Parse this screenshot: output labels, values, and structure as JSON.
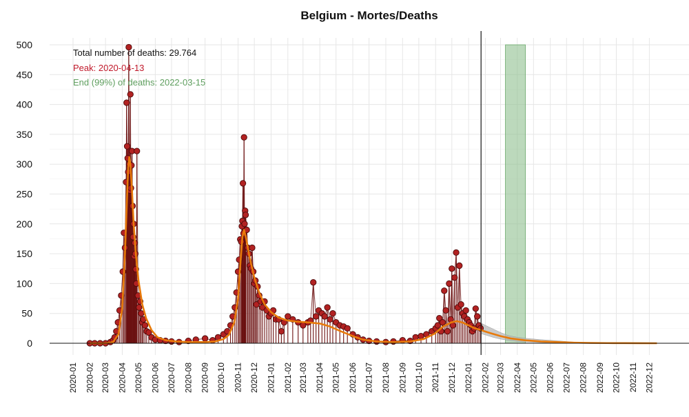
{
  "chart_data": {
    "type": "line",
    "title": "Belgium - Mortes/Deaths",
    "xlabel": "",
    "ylabel": "",
    "ylim": [
      0,
      500
    ],
    "xlim": [
      "2020-01-01",
      "2022-12-31"
    ],
    "grid": true,
    "y_ticks": [
      0,
      50,
      100,
      150,
      200,
      250,
      300,
      350,
      400,
      450,
      500
    ],
    "x_ticks": [
      "2020-01",
      "2020-02",
      "2020-03",
      "2020-04",
      "2020-05",
      "2020-06",
      "2020-07",
      "2020-08",
      "2020-09",
      "2020-10",
      "2020-11",
      "2020-12",
      "2021-01",
      "2021-02",
      "2021-03",
      "2021-04",
      "2021-05",
      "2021-06",
      "2021-07",
      "2021-08",
      "2021-09",
      "2021-10",
      "2021-11",
      "2021-12",
      "2022-01",
      "2022-02",
      "2022-03",
      "2022-04",
      "2022-05",
      "2022-06",
      "2022-07",
      "2022-08",
      "2022-09",
      "2022-10",
      "2022-11",
      "2022-12"
    ],
    "annotations": {
      "total": "Total number of deaths: 29.764",
      "peak": "Peak: 2020-04-13",
      "end": "End (99%) of deaths: 2022-03-15"
    },
    "current_date": "2022-01-24",
    "peak_band": [
      "2020-04-11",
      "2020-04-15"
    ],
    "end_band": [
      "2022-03-10",
      "2022-04-16"
    ],
    "colors": {
      "observed_points": "#b22222",
      "observed_lines": "#6b1010",
      "fit_line": "#e87a0a",
      "prediction_band": "#b5b5b5",
      "peak_band": "#d45a5a",
      "end_band": "#8fbf8f",
      "total_text": "#111111",
      "peak_text": "#c0182a",
      "end_text": "#5e9e5e"
    },
    "series": [
      {
        "kind": "observed",
        "x": [
          "2020-02-01",
          "2020-02-10",
          "2020-02-20",
          "2020-03-01",
          "2020-03-10",
          "2020-03-15",
          "2020-03-18",
          "2020-03-21",
          "2020-03-24",
          "2020-03-27",
          "2020-03-30",
          "2020-04-02",
          "2020-04-04",
          "2020-04-06",
          "2020-04-08",
          "2020-04-09",
          "2020-04-10",
          "2020-04-11",
          "2020-04-12",
          "2020-04-13",
          "2020-04-14",
          "2020-04-15",
          "2020-04-16",
          "2020-04-17",
          "2020-04-18",
          "2020-04-19",
          "2020-04-20",
          "2020-04-21",
          "2020-04-22",
          "2020-04-23",
          "2020-04-24",
          "2020-04-25",
          "2020-04-26",
          "2020-04-27",
          "2020-04-28",
          "2020-04-30",
          "2020-05-02",
          "2020-05-04",
          "2020-05-06",
          "2020-05-08",
          "2020-05-10",
          "2020-05-13",
          "2020-05-16",
          "2020-05-20",
          "2020-05-25",
          "2020-06-01",
          "2020-06-10",
          "2020-06-20",
          "2020-07-01",
          "2020-07-15",
          "2020-08-01",
          "2020-08-15",
          "2020-09-01",
          "2020-09-15",
          "2020-09-25",
          "2020-10-05",
          "2020-10-12",
          "2020-10-18",
          "2020-10-22",
          "2020-10-26",
          "2020-10-29",
          "2020-11-01",
          "2020-11-03",
          "2020-11-05",
          "2020-11-07",
          "2020-11-08",
          "2020-11-09",
          "2020-11-10",
          "2020-11-11",
          "2020-11-12",
          "2020-11-13",
          "2020-11-14",
          "2020-11-15",
          "2020-11-17",
          "2020-11-19",
          "2020-11-21",
          "2020-11-23",
          "2020-11-25",
          "2020-11-27",
          "2020-11-29",
          "2020-12-01",
          "2020-12-03",
          "2020-12-05",
          "2020-12-07",
          "2020-12-10",
          "2020-12-13",
          "2020-12-16",
          "2020-12-20",
          "2020-12-24",
          "2020-12-28",
          "2021-01-01",
          "2021-01-05",
          "2021-01-10",
          "2021-01-15",
          "2021-01-20",
          "2021-01-25",
          "2021-02-01",
          "2021-02-10",
          "2021-02-20",
          "2021-03-01",
          "2021-03-10",
          "2021-03-15",
          "2021-03-20",
          "2021-03-25",
          "2021-03-30",
          "2021-04-05",
          "2021-04-10",
          "2021-04-15",
          "2021-04-20",
          "2021-04-25",
          "2021-05-01",
          "2021-05-08",
          "2021-05-15",
          "2021-05-22",
          "2021-06-01",
          "2021-06-10",
          "2021-06-20",
          "2021-07-01",
          "2021-07-15",
          "2021-08-01",
          "2021-08-15",
          "2021-09-01",
          "2021-09-15",
          "2021-09-25",
          "2021-10-05",
          "2021-10-15",
          "2021-10-25",
          "2021-11-01",
          "2021-11-05",
          "2021-11-08",
          "2021-11-11",
          "2021-11-14",
          "2021-11-17",
          "2021-11-20",
          "2021-11-23",
          "2021-11-26",
          "2021-11-29",
          "2021-12-01",
          "2021-12-03",
          "2021-12-06",
          "2021-12-09",
          "2021-12-12",
          "2021-12-15",
          "2021-12-18",
          "2021-12-21",
          "2021-12-24",
          "2021-12-27",
          "2021-12-30",
          "2022-01-02",
          "2022-01-05",
          "2022-01-08",
          "2022-01-11",
          "2022-01-14",
          "2022-01-17",
          "2022-01-20",
          "2022-01-23"
        ],
        "y": [
          0,
          0,
          0,
          0,
          2,
          5,
          10,
          20,
          35,
          55,
          80,
          120,
          185,
          160,
          270,
          403,
          330,
          310,
          287,
          496,
          300,
          256,
          417,
          260,
          298,
          322,
          230,
          178,
          200,
          146,
          168,
          150,
          124,
          100,
          322,
          80,
          60,
          70,
          50,
          35,
          40,
          30,
          20,
          18,
          10,
          6,
          5,
          4,
          3,
          2,
          4,
          6,
          8,
          5,
          10,
          15,
          20,
          30,
          45,
          60,
          85,
          120,
          140,
          174,
          170,
          196,
          205,
          268,
          184,
          345,
          200,
          222,
          215,
          190,
          160,
          150,
          130,
          125,
          160,
          120,
          100,
          105,
          65,
          95,
          80,
          70,
          60,
          70,
          55,
          45,
          50,
          55,
          40,
          40,
          20,
          35,
          45,
          40,
          35,
          30,
          35,
          38,
          102,
          45,
          55,
          50,
          45,
          60,
          40,
          50,
          35,
          30,
          28,
          25,
          15,
          10,
          6,
          4,
          3,
          2,
          3,
          5,
          4,
          10,
          12,
          15,
          20,
          25,
          30,
          42,
          20,
          35,
          88,
          55,
          20,
          100,
          40,
          125,
          30,
          110,
          152,
          60,
          130,
          65,
          50,
          45,
          55,
          40,
          35,
          30,
          20,
          25,
          58,
          45,
          30,
          25
        ],
        "rendering": "lollipop"
      },
      {
        "kind": "fit",
        "x": [
          "2020-02-01",
          "2020-03-01",
          "2020-03-15",
          "2020-03-25",
          "2020-04-01",
          "2020-04-06",
          "2020-04-10",
          "2020-04-12",
          "2020-04-14",
          "2020-04-16",
          "2020-04-19",
          "2020-04-22",
          "2020-04-26",
          "2020-05-01",
          "2020-05-08",
          "2020-05-15",
          "2020-05-25",
          "2020-06-05",
          "2020-06-20",
          "2020-07-10",
          "2020-08-01",
          "2020-09-01",
          "2020-09-20",
          "2020-10-05",
          "2020-10-15",
          "2020-10-25",
          "2020-11-01",
          "2020-11-05",
          "2020-11-09",
          "2020-11-12",
          "2020-11-16",
          "2020-11-22",
          "2020-12-01",
          "2020-12-10",
          "2020-12-20",
          "2021-01-01",
          "2021-01-15",
          "2021-02-01",
          "2021-02-20",
          "2021-03-10",
          "2021-04-01",
          "2021-04-20",
          "2021-05-10",
          "2021-06-01",
          "2021-06-20",
          "2021-07-15",
          "2021-08-15",
          "2021-09-15",
          "2021-10-10",
          "2021-10-30",
          "2021-11-15",
          "2021-11-30",
          "2021-12-10",
          "2021-12-20",
          "2022-01-01",
          "2022-01-10",
          "2022-01-24",
          "2022-02-10",
          "2022-03-01",
          "2022-03-20",
          "2022-04-15",
          "2022-05-15",
          "2022-06-15",
          "2022-07-15",
          "2022-08-15",
          "2022-09-15",
          "2022-10-15",
          "2022-11-15",
          "2022-12-15"
        ],
        "y": [
          0,
          0,
          2,
          15,
          60,
          150,
          250,
          295,
          312,
          300,
          255,
          200,
          150,
          105,
          65,
          42,
          22,
          10,
          5,
          3,
          2,
          2,
          3,
          7,
          14,
          35,
          75,
          130,
          178,
          190,
          175,
          145,
          110,
          85,
          65,
          52,
          43,
          38,
          36,
          35,
          33,
          28,
          20,
          12,
          6,
          3,
          2,
          3,
          7,
          16,
          28,
          35,
          37,
          35,
          30,
          26,
          22,
          17,
          12,
          8,
          5,
          3,
          2,
          1,
          0.5,
          0.3,
          0.2,
          0.1,
          0
        ],
        "rendering": "line"
      },
      {
        "kind": "prediction_band",
        "x": [
          "2022-01-24",
          "2022-02-01",
          "2022-02-15",
          "2022-03-01",
          "2022-03-15",
          "2022-04-01",
          "2022-04-20",
          "2022-05-15",
          "2022-06-15",
          "2022-07-15",
          "2022-08-15",
          "2022-09-15",
          "2022-10-15",
          "2022-11-15",
          "2022-12-15"
        ],
        "y_low": [
          16,
          14,
          10,
          7,
          5,
          3,
          2,
          1,
          0.5,
          0.3,
          0.2,
          0.1,
          0,
          0,
          0
        ],
        "y_high": [
          34,
          30,
          24,
          18,
          13,
          10,
          8,
          6,
          4,
          2,
          1,
          0.5,
          0.3,
          0.1,
          0
        ]
      }
    ]
  }
}
